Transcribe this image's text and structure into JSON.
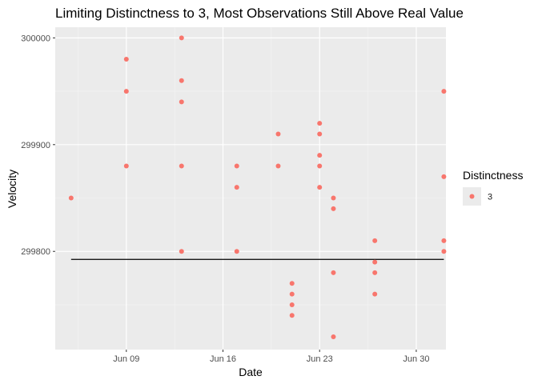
{
  "chart_data": {
    "type": "scatter",
    "title": "Limiting Distinctness to 3, Most Observations Still Above Real Value",
    "xlabel": "Date",
    "ylabel": "Velocity",
    "x_is_date": true,
    "x_range": [
      "1879-06-04",
      "1879-07-03"
    ],
    "ylim": [
      299708,
      300010
    ],
    "x_ticks": [
      {
        "date": "1879-06-09",
        "label": "Jun 09"
      },
      {
        "date": "1879-06-16",
        "label": "Jun 16"
      },
      {
        "date": "1879-06-23",
        "label": "Jun 23"
      },
      {
        "date": "1879-06-30",
        "label": "Jun 30"
      }
    ],
    "y_ticks": [
      {
        "value": 299800,
        "label": "299800"
      },
      {
        "value": 299900,
        "label": "299900"
      },
      {
        "value": 300000,
        "label": "300000"
      }
    ],
    "grid": true,
    "legend": {
      "title": "Distinctness",
      "position": "right",
      "entries": [
        {
          "label": "3",
          "color": "#F8766D"
        }
      ]
    },
    "series": [
      {
        "name": "3",
        "color": "#F8766D",
        "points": [
          {
            "x": "1879-06-05",
            "y": 299850
          },
          {
            "x": "1879-06-09",
            "y": 299980
          },
          {
            "x": "1879-06-09",
            "y": 299950
          },
          {
            "x": "1879-06-09",
            "y": 299880
          },
          {
            "x": "1879-06-13",
            "y": 300000
          },
          {
            "x": "1879-06-13",
            "y": 299960
          },
          {
            "x": "1879-06-13",
            "y": 299940
          },
          {
            "x": "1879-06-13",
            "y": 299880
          },
          {
            "x": "1879-06-13",
            "y": 299800
          },
          {
            "x": "1879-06-17",
            "y": 299880
          },
          {
            "x": "1879-06-17",
            "y": 299860
          },
          {
            "x": "1879-06-17",
            "y": 299800
          },
          {
            "x": "1879-06-20",
            "y": 299910
          },
          {
            "x": "1879-06-20",
            "y": 299880
          },
          {
            "x": "1879-06-21",
            "y": 299770
          },
          {
            "x": "1879-06-21",
            "y": 299760
          },
          {
            "x": "1879-06-21",
            "y": 299750
          },
          {
            "x": "1879-06-21",
            "y": 299740
          },
          {
            "x": "1879-06-23",
            "y": 299920
          },
          {
            "x": "1879-06-23",
            "y": 299910
          },
          {
            "x": "1879-06-23",
            "y": 299890
          },
          {
            "x": "1879-06-23",
            "y": 299880
          },
          {
            "x": "1879-06-23",
            "y": 299860
          },
          {
            "x": "1879-06-24",
            "y": 299850
          },
          {
            "x": "1879-06-24",
            "y": 299840
          },
          {
            "x": "1879-06-24",
            "y": 299780
          },
          {
            "x": "1879-06-24",
            "y": 299720
          },
          {
            "x": "1879-06-27",
            "y": 299810
          },
          {
            "x": "1879-06-27",
            "y": 299790
          },
          {
            "x": "1879-06-27",
            "y": 299780
          },
          {
            "x": "1879-06-27",
            "y": 299760
          },
          {
            "x": "1879-07-02",
            "y": 299950
          },
          {
            "x": "1879-07-02",
            "y": 299870
          },
          {
            "x": "1879-07-02",
            "y": 299810
          },
          {
            "x": "1879-07-02",
            "y": 299800
          }
        ]
      }
    ],
    "reference_line": {
      "y": 299792.5,
      "x_start": "1879-06-05",
      "x_end": "1879-07-02",
      "color": "#000000"
    }
  }
}
